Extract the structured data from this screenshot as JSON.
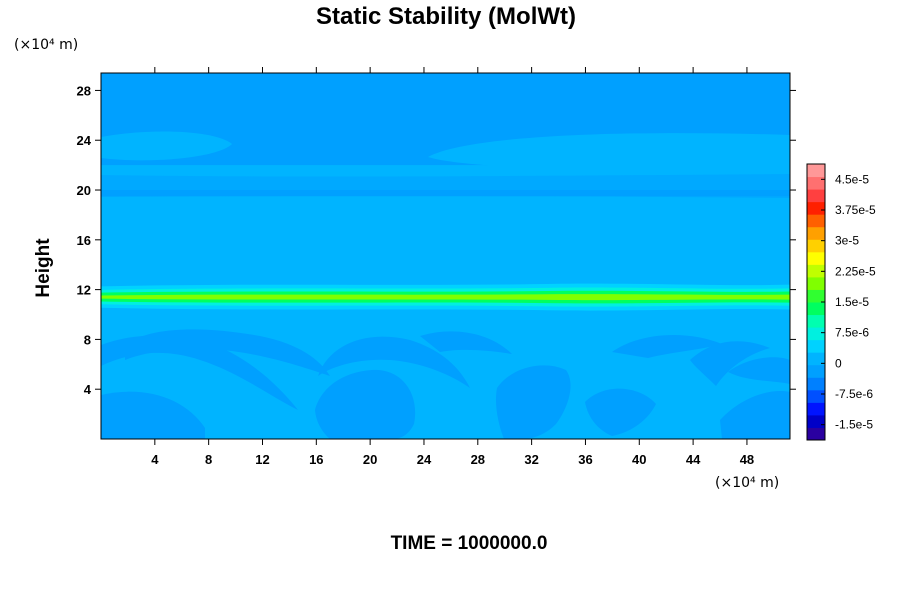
{
  "chart_data": {
    "type": "heatmap",
    "title": "Static Stability (MolWt)",
    "xlabel": "",
    "ylabel": "Height",
    "x_unit": "(×10⁴ m)",
    "y_unit": "(×10⁴ m)",
    "footer": "TIME = 1000000.0",
    "xlim": [
      0,
      51.2
    ],
    "ylim": [
      0,
      29.4
    ],
    "x_ticks": [
      4,
      8,
      12,
      16,
      20,
      24,
      28,
      32,
      36,
      40,
      44,
      48
    ],
    "y_ticks": [
      4,
      8,
      12,
      16,
      20,
      24,
      28
    ],
    "colorbar": {
      "min": -1.875e-05,
      "max": 4.875e-05,
      "step": 3.75e-06,
      "labels": [
        "4.5e-5",
        "3.75e-5",
        "3e-5",
        "2.25e-5",
        "1.5e-5",
        "7.5e-6",
        "0",
        "-7.5e-6",
        "-1.5e-5"
      ],
      "label_values": [
        4.5e-05,
        3.75e-05,
        3e-05,
        2.25e-05,
        1.5e-05,
        7.5e-06,
        0,
        -7.5e-06,
        -1.5e-05
      ],
      "colors": [
        "#2a00a0",
        "#0000c8",
        "#0014ff",
        "#0050ff",
        "#0080ff",
        "#00a0ff",
        "#00b4ff",
        "#00d2ff",
        "#00f0e0",
        "#00ffb0",
        "#00ff60",
        "#30ff30",
        "#80ff00",
        "#c0ff00",
        "#ffff00",
        "#ffd000",
        "#ffa000",
        "#ff6000",
        "#ff2000",
        "#ff4040",
        "#ff7070",
        "#ff9898"
      ]
    },
    "field": {
      "background_value": -1.5e-06,
      "background_color": "#00a0ff",
      "light_color": "#00b4ff",
      "band_colors": [
        "#00d2ff",
        "#00f0e0",
        "#00ff60",
        "#80ff00"
      ],
      "bands": [
        {
          "y_center": 11.4,
          "half_width": 1.0,
          "value": 5.5e-06,
          "level": 0
        },
        {
          "y_center": 11.4,
          "half_width": 0.7,
          "value": 9e-06,
          "level": 1
        },
        {
          "y_center": 11.4,
          "half_width": 0.45,
          "value": 1.4e-05,
          "level": 2
        },
        {
          "y_center": 11.4,
          "half_width": 0.2,
          "value": 1.9e-05,
          "level": 3
        }
      ],
      "regions": [
        {
          "value": 1.5e-06,
          "from_y": 0,
          "to_y": 19.5
        },
        {
          "value": 1.5e-06,
          "from_y": 20.0,
          "to_y": 22.0
        },
        {
          "value": 1.5e-06,
          "note": "lens",
          "x": [
            0,
            9.7
          ],
          "y": [
            22.4,
            24.6
          ]
        },
        {
          "value": 1.5e-06,
          "note": "lens",
          "x": [
            24.5,
            51.2
          ],
          "y": [
            21.9,
            24.8
          ]
        }
      ]
    }
  }
}
